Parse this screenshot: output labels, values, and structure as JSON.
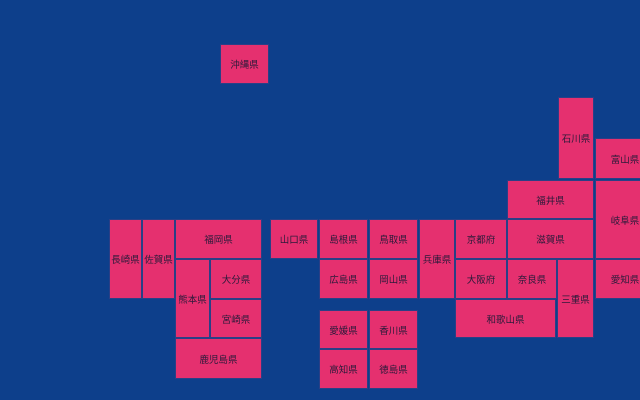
{
  "prefectures": [
    "沖縄県",
    "石川県",
    "富山県",
    "福井県",
    "岐阜県",
    "長崎県",
    "佐賀県",
    "福岡県",
    "山口県",
    "島根県",
    "鳥取県",
    "兵庫県",
    "京都府",
    "滋賀県",
    "熊本県",
    "大分県",
    "広島県",
    "岡山県",
    "大阪府",
    "奈良県",
    "三重県",
    "愛知県",
    "宮崎県",
    "和歌山県",
    "愛媛県",
    "香川県",
    "鹿児島県",
    "高知県",
    "徳島県"
  ]
}
